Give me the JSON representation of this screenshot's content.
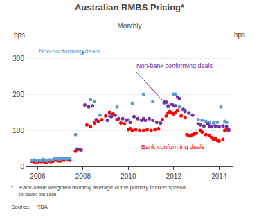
{
  "chart_data": {
    "type": "scatter",
    "title": "Australian RMBS Pricing*",
    "subtitle": "Monthly",
    "ylabel": "bps",
    "y2label": "bps",
    "footnote": "*    Face-value weighted monthly average of the primary market spread\n     to bank bill rate",
    "source": "Source:    RBA",
    "xlim": [
      2005.5,
      2014.6
    ],
    "xticks": [
      2006,
      2008,
      2010,
      2012,
      2014
    ],
    "ylim": [
      0,
      350
    ],
    "yticks": [
      0,
      100,
      200,
      300
    ],
    "y2lim": [
      0,
      350
    ],
    "y2ticks": [
      0,
      100,
      200,
      300
    ],
    "grid": "y",
    "series": [
      {
        "color": "#FF0000",
        "x": [
          2005.75,
          2005.83,
          2005.92,
          2006.0,
          2006.08,
          2006.17,
          2006.25,
          2006.33,
          2006.42,
          2006.5,
          2006.58,
          2006.67,
          2006.75,
          2006.83,
          2006.92,
          2007.0,
          2007.08,
          2007.17,
          2007.25,
          2007.33,
          2007.42,
          2007.67,
          2007.83,
          2008.17,
          2008.33,
          2008.5,
          2008.67,
          2008.83,
          2009.0,
          2009.17,
          2009.33,
          2009.5,
          2009.67,
          2009.83,
          2010.0,
          2010.08,
          2010.17,
          2010.33,
          2010.5,
          2010.67,
          2010.83,
          2011.0,
          2011.17,
          2011.33,
          2011.5,
          2011.67,
          2011.75,
          2011.83,
          2011.92,
          2012.0,
          2012.08,
          2012.17,
          2012.33,
          2012.5,
          2012.58,
          2012.67,
          2012.75,
          2012.83,
          2012.92,
          2013.0,
          2013.17,
          2013.25,
          2013.42,
          2013.58,
          2013.67,
          2013.75,
          2013.83,
          2013.92,
          2014.0,
          2014.17,
          2014.25,
          2014.33,
          2014.42
        ],
        "values": [
          14,
          13,
          12,
          13,
          14,
          13,
          14,
          12,
          12,
          15,
          13,
          14,
          18,
          17,
          15,
          15,
          18,
          17,
          18,
          20,
          17,
          42,
          47,
          115,
          110,
          120,
          125,
          130,
          140,
          150,
          145,
          130,
          120,
          118,
          102,
          105,
          100,
          102,
          100,
          100,
          102,
          100,
          102,
          105,
          130,
          140,
          148,
          152,
          148,
          145,
          150,
          155,
          140,
          135,
          88,
          85,
          85,
          88,
          90,
          92,
          100,
          95,
          88,
          85,
          80,
          75,
          78,
          72,
          70,
          75,
          100,
          102,
          100
        ]
      },
      {
        "color": "#5B9BD5",
        "x": [
          2005.75,
          2005.83,
          2005.92,
          2006.0,
          2006.08,
          2006.17,
          2006.25,
          2006.33,
          2006.42,
          2006.5,
          2006.58,
          2006.67,
          2006.75,
          2006.83,
          2006.92,
          2007.0,
          2007.08,
          2007.17,
          2007.25,
          2007.33,
          2007.42,
          2007.67,
          2008.0,
          2008.33,
          2008.5,
          2008.75,
          2009.17,
          2009.5,
          2010.0,
          2010.17,
          2010.67,
          2011.08,
          2011.58,
          2011.75,
          2012.0,
          2012.08,
          2012.25,
          2012.5,
          2012.67,
          2013.08,
          2013.25,
          2013.42,
          2013.58,
          2013.75,
          2013.92,
          2014.08,
          2014.25,
          2014.33,
          2014.42
        ],
        "values": [
          16,
          18,
          15,
          16,
          17,
          16,
          19,
          16,
          15,
          18,
          17,
          18,
          22,
          21,
          20,
          20,
          22,
          22,
          20,
          22,
          22,
          88,
          315,
          185,
          180,
          142,
          140,
          165,
          130,
          175,
          200,
          180,
          175,
          165,
          200,
          200,
          165,
          155,
          148,
          130,
          128,
          125,
          122,
          120,
          122,
          165,
          125,
          122,
          102
        ]
      },
      {
        "color": "#7030A0",
        "x": [
          2007.75,
          2007.92,
          2008.08,
          2008.25,
          2008.42,
          2008.58,
          2009.08,
          2009.25,
          2009.42,
          2009.58,
          2009.75,
          2009.92,
          2010.08,
          2010.25,
          2010.42,
          2010.58,
          2010.67,
          2010.75,
          2010.92,
          2011.08,
          2011.25,
          2011.42,
          2011.58,
          2011.67,
          2011.75,
          2011.92,
          2012.0,
          2012.08,
          2012.17,
          2012.25,
          2012.42,
          2012.5,
          2012.67,
          2012.83,
          2013.08,
          2013.17,
          2013.33,
          2013.5,
          2013.58,
          2013.67,
          2013.83,
          2014.0,
          2014.17,
          2014.33,
          2014.42
        ],
        "values": [
          48,
          45,
          170,
          165,
          168,
          130,
          128,
          138,
          142,
          132,
          132,
          128,
          122,
          138,
          132,
          128,
          132,
          128,
          132,
          128,
          122,
          120,
          178,
          178,
          168,
          172,
          168,
          168,
          192,
          188,
          158,
          152,
          148,
          142,
          118,
          115,
          112,
          118,
          112,
          110,
          112,
          110,
          112,
          110,
          102
        ]
      }
    ],
    "annotations": [
      {
        "text": "Non-conforming deals",
        "x": 2006.0,
        "y": 332,
        "color": "#5B9BD5"
      },
      {
        "text": "Non-bank conforming deals",
        "x": 2010.3,
        "y": 265,
        "color": "#7030A0",
        "arrow_x": 2011.58,
        "arrow_y": 178
      },
      {
        "text": "Bank conforming deals",
        "x": 2010.5,
        "y": 68,
        "color": "#FF0000"
      }
    ]
  }
}
